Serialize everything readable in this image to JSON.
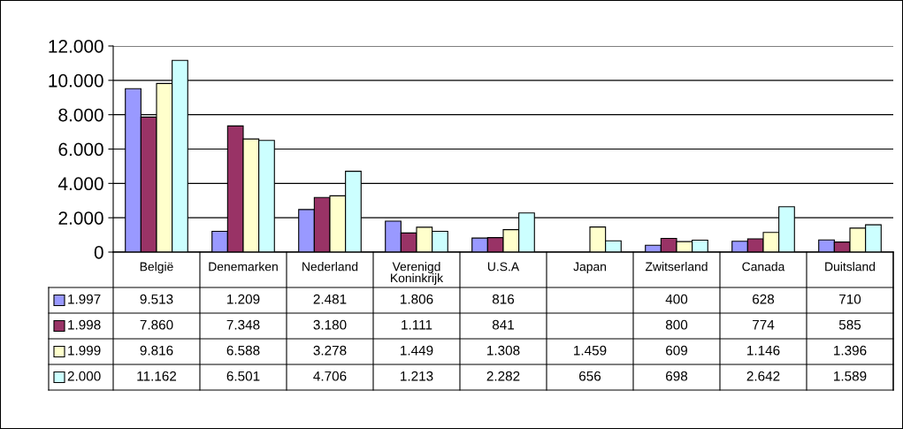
{
  "chart_data": {
    "type": "bar",
    "categories": [
      "België",
      "Denemarken",
      "Nederland",
      "Verenigd\nKoninkrijk",
      "U.S.A",
      "Japan",
      "Zwitserland",
      "Canada",
      "Duitsland"
    ],
    "ylim": [
      0,
      12000
    ],
    "yticks": [
      {
        "value": 0,
        "label": "0"
      },
      {
        "value": 2000,
        "label": "2.000"
      },
      {
        "value": 4000,
        "label": "4.000"
      },
      {
        "value": 6000,
        "label": "6.000"
      },
      {
        "value": 8000,
        "label": "8.000"
      },
      {
        "value": 10000,
        "label": "10.000"
      },
      {
        "value": 12000,
        "label": "12.000"
      }
    ],
    "grid": "y",
    "legend": "bottom left",
    "series": [
      {
        "name": "1.997",
        "color": "#9999ff",
        "values": [
          9513,
          1209,
          2481,
          1806,
          816,
          null,
          400,
          628,
          710
        ],
        "value_labels": [
          "9.513",
          "1.209",
          "2.481",
          "1.806",
          "816",
          null,
          "400",
          "628",
          "710"
        ]
      },
      {
        "name": "1.998",
        "color": "#993366",
        "values": [
          7860,
          7348,
          3180,
          1111,
          841,
          null,
          800,
          774,
          585
        ],
        "value_labels": [
          "7.860",
          "7.348",
          "3.180",
          "1.111",
          "841",
          null,
          "800",
          "774",
          "585"
        ]
      },
      {
        "name": "1.999",
        "color": "#ffffcc",
        "values": [
          9816,
          6588,
          3278,
          1449,
          1308,
          1459,
          609,
          1146,
          1396
        ],
        "value_labels": [
          "9.816",
          "6.588",
          "3.278",
          "1.449",
          "1.308",
          "1.459",
          "609",
          "1.146",
          "1.396"
        ]
      },
      {
        "name": "2.000",
        "color": "#ccffff",
        "values": [
          11162,
          6501,
          4706,
          1213,
          2282,
          656,
          698,
          2642,
          1589
        ],
        "value_labels": [
          "11.162",
          "6.501",
          "4.706",
          "1.213",
          "2.282",
          "656",
          "698",
          "2.642",
          "1.589"
        ]
      }
    ]
  }
}
